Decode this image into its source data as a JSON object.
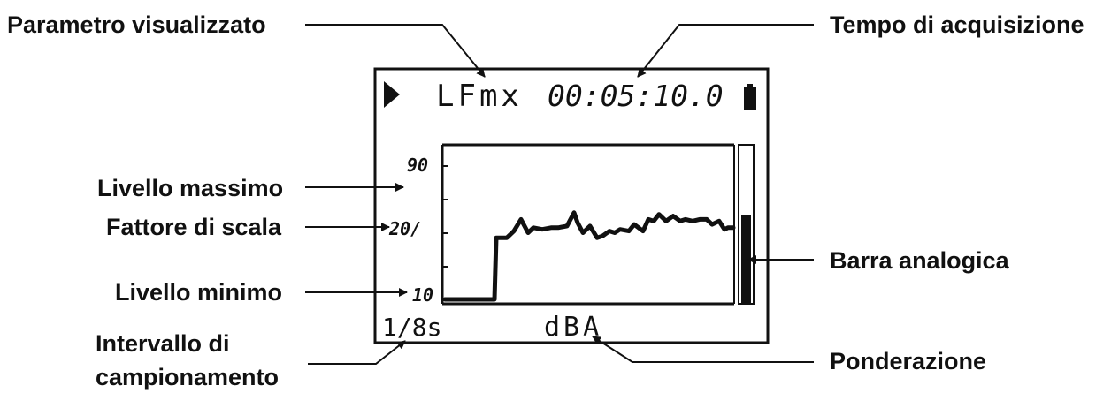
{
  "callouts": {
    "displayed_parameter": "Parametro visualizzato",
    "acquisition_time": "Tempo di acquisizione",
    "max_level": "Livello massimo",
    "scale_factor": "Fattore di scala",
    "min_level": "Livello minimo",
    "sampling_interval_line1": "Intervallo di",
    "sampling_interval_line2": "campionamento",
    "analog_bar": "Barra analogica",
    "weighting": "Ponderazione"
  },
  "display": {
    "parameter": "LFmx",
    "time": "00:05:10.0",
    "max_label": "90",
    "scale_label": "20/",
    "min_label": "10",
    "interval": "1/8s",
    "weighting": "dBA",
    "level_max": 90,
    "level_min": 10,
    "analog_bar_fraction": 0.56
  },
  "chart_data": {
    "type": "line",
    "ylim": [
      10,
      90
    ],
    "xlim": [
      0,
      326
    ],
    "x": [
      0,
      56,
      58,
      70,
      78,
      86,
      94,
      100,
      110,
      120,
      128,
      138,
      146,
      150,
      156,
      164,
      172,
      178,
      186,
      192,
      198,
      208,
      214,
      224,
      230,
      236,
      242,
      250,
      258,
      266,
      272,
      280,
      288,
      296,
      302,
      310,
      316,
      320,
      326
    ],
    "values": [
      10,
      10,
      47,
      47,
      51,
      58,
      50,
      53,
      52,
      53,
      53,
      54,
      62,
      56,
      50,
      54,
      47,
      48,
      51,
      50,
      52,
      51,
      55,
      51,
      58,
      57,
      61,
      57,
      60,
      57,
      58,
      57,
      58,
      58,
      55,
      57,
      52,
      53,
      53
    ]
  }
}
